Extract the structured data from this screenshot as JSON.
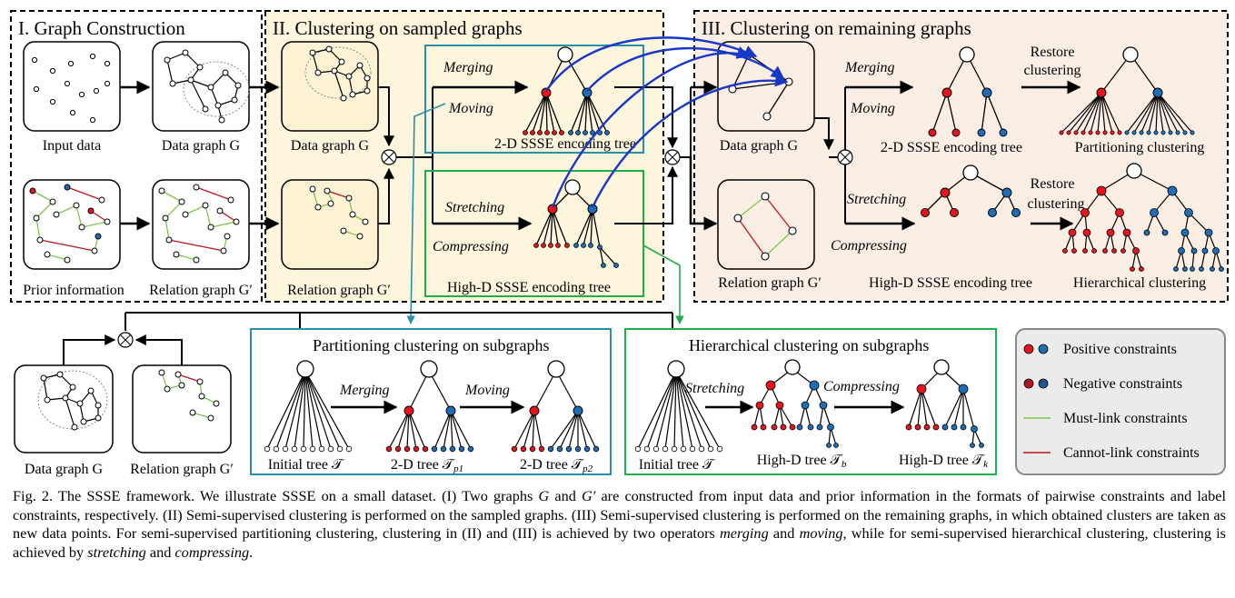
{
  "section1": {
    "title": "I. Graph Construction",
    "input_label": "Input data",
    "data_graph_label": "Data graph G",
    "prior_label": "Prior information",
    "relation_label": "Relation graph G′"
  },
  "section2": {
    "title": "II. Clustering on sampled graphs",
    "data_graph_label": "Data graph G",
    "relation_label": "Relation graph G′",
    "merging": "Merging",
    "moving": "Moving",
    "tree2d_label": "2-D SSSE encoding tree",
    "stretching": "Stretching",
    "compressing": "Compressing",
    "treehd_label": "High-D SSSE encoding tree"
  },
  "section3": {
    "title": "III. Clustering on remaining graphs",
    "data_graph_label": "Data graph G",
    "relation_label": "Relation graph G′",
    "merging": "Merging",
    "moving": "Moving",
    "tree2d_label": "2-D SSSE encoding tree",
    "restore1": "Restore",
    "restore2": "clustering",
    "partition_label": "Partitioning clustering",
    "stretching": "Stretching",
    "compressing": "Compressing",
    "treehd_label": "High-D SSSE encoding tree",
    "hier_label": "Hierarchical clustering"
  },
  "sub": {
    "data_graph_label": "Data graph G",
    "relation_label": "Relation graph G′"
  },
  "part": {
    "title": "Partitioning clustering on subgraphs",
    "merging": "Merging",
    "moving": "Moving",
    "initial": "Initial tree 𝒯",
    "tree1": "2-D tree 𝒯",
    "tree1_sub": "p1",
    "tree2": "2-D tree 𝒯",
    "tree2_sub": "p2"
  },
  "hier": {
    "title": "Hierarchical clustering on subgraphs",
    "stretching": "Stretching",
    "compressing": "Compressing",
    "initial": "Initial tree 𝒯",
    "tree1": "High-D tree 𝒯",
    "tree1_sub": "b",
    "tree2": "High-D tree 𝒯",
    "tree2_sub": "k"
  },
  "legend": {
    "positive": "Positive constraints",
    "negative": "Negative constraints",
    "must": "Must-link constraints",
    "cannot": "Cannot-link constraints"
  },
  "colors": {
    "red": "#e8141d",
    "blue": "#1a6fb8",
    "green": "#7ec84a",
    "cannot": "#c0141d",
    "arrow_blue": "#1838c8",
    "teal": "#2a8fa8",
    "box_green": "#1fae4a",
    "section_fill": "#fdf5dc",
    "section3_fill": "#fbeee4"
  },
  "caption": {
    "p1": "Fig. 2.  The SSSE framework. We illustrate SSSE on a small dataset. (I) Two graphs ",
    "g1": "G",
    "p2": " and ",
    "g2": "G′",
    "p3": " are constructed from input data and prior information in the formats of pairwise constraints and label constraints, respectively. (II) Semi-supervised clustering is performed on the sampled graphs. (III) Semi-supervised clustering is performed on the remaining graphs, in which obtained clusters are taken as new data points. For semi-supervised partitioning clustering, clustering in (II) and (III) is achieved by two operators ",
    "m1": "merging",
    "p4": " and ",
    "m2": "moving",
    "p5": ", while for semi-supervised hierarchical clustering, clustering is achieved by ",
    "m3": "stretching",
    "p6": " and ",
    "m4": "compressing",
    "p7": "."
  }
}
